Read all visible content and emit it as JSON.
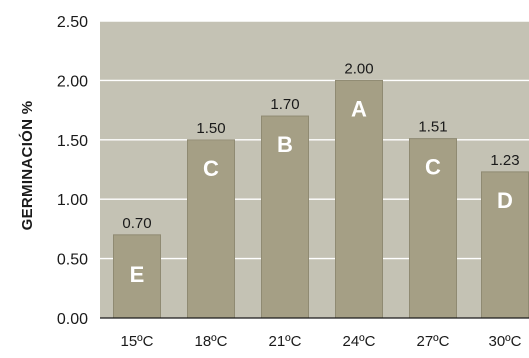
{
  "chart_data": {
    "type": "bar",
    "title": "",
    "xlabel": "",
    "ylabel": "GERMINACIÓN %",
    "ylim": [
      0,
      2.5
    ],
    "yticks": [
      "0.00",
      "0.50",
      "1.00",
      "1.50",
      "2.00",
      "2.50"
    ],
    "grid": true,
    "categories": [
      "15ºC",
      "18ºC",
      "21ºC",
      "24ºC",
      "27ºC",
      "30ºC"
    ],
    "values": [
      0.7,
      1.5,
      1.7,
      2.0,
      1.51,
      1.23
    ],
    "value_labels": [
      "0.70",
      "1.50",
      "1.70",
      "2.00",
      "1.51",
      "1.23"
    ],
    "group_letters": [
      "E",
      "C",
      "B",
      "A",
      "C",
      "D"
    ],
    "colors": {
      "plot_background": "#c4c2b4",
      "bar": "#a59f85",
      "bar_edge": "#8f8a72",
      "gridline": "#ffffff",
      "axis": "#1a1a1a",
      "group_letter": "#ffffff"
    }
  }
}
